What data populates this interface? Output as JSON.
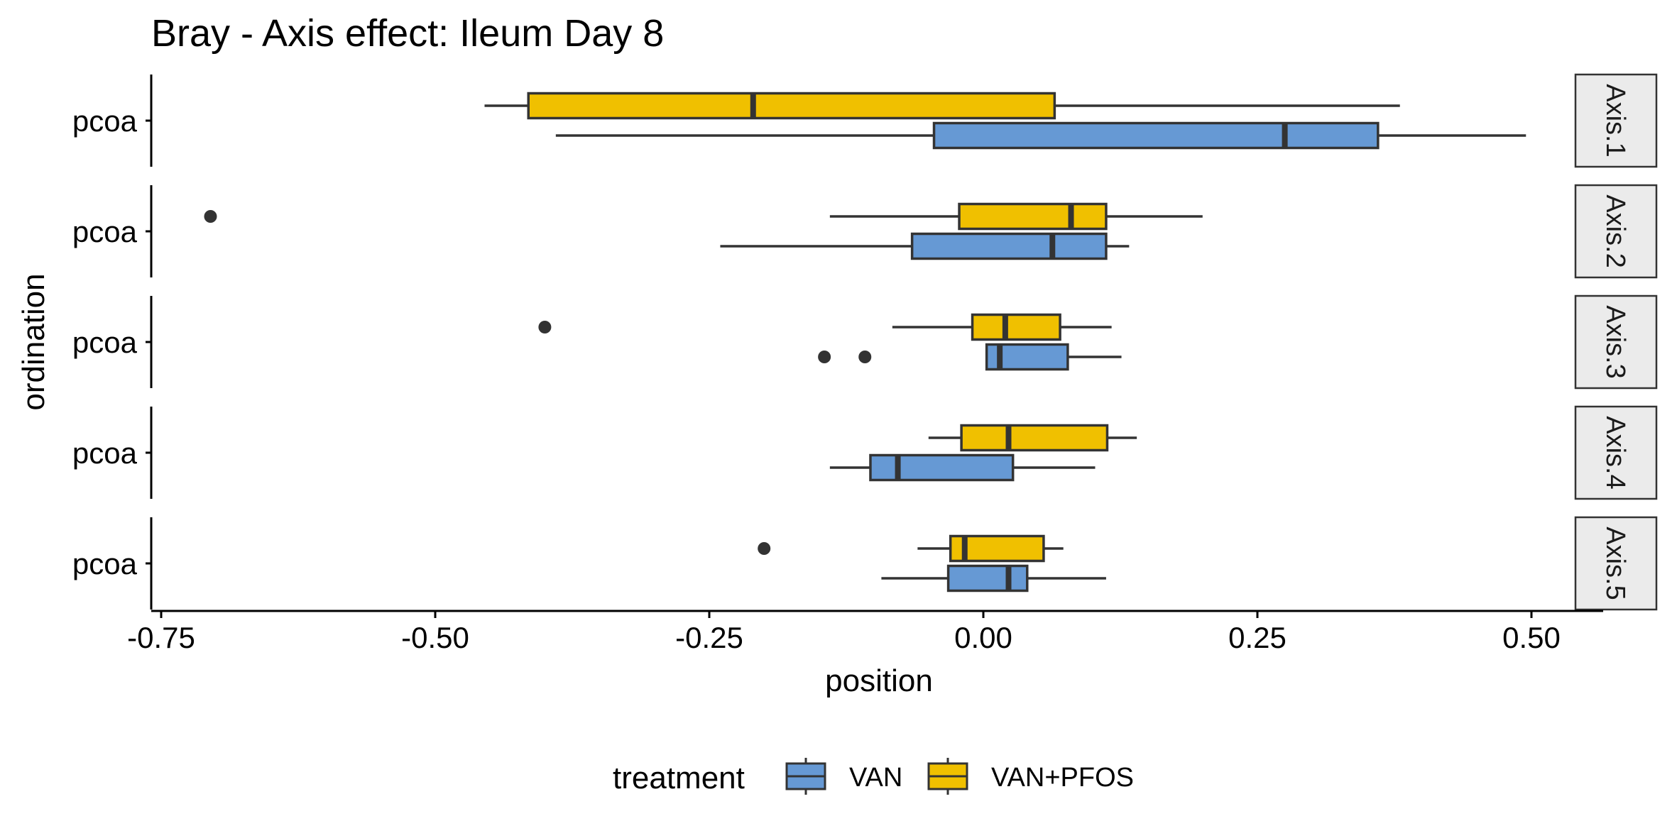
{
  "chart_data": {
    "type": "boxplot",
    "title": "Bray - Axis effect: Ileum Day 8",
    "xlabel": "position",
    "ylabel": "ordination",
    "xlim": [
      -0.76,
      0.56
    ],
    "x_ticks": [
      -0.75,
      -0.5,
      -0.25,
      0.0,
      0.25,
      0.5
    ],
    "x_tick_labels": [
      "-0.75",
      "-0.50",
      "-0.25",
      "0.00",
      "0.25",
      "0.50"
    ],
    "legend": {
      "title": "treatment",
      "position": "bottom"
    },
    "series": [
      {
        "name": "VAN",
        "color": "#6699d4"
      },
      {
        "name": "VAN+PFOS",
        "color": "#f0c000"
      }
    ],
    "panels": [
      {
        "strip": "Axis.1",
        "category": "pcoa",
        "boxes": [
          {
            "series": "VAN+PFOS",
            "whisker_low": -0.455,
            "q1": -0.415,
            "median": -0.21,
            "q3": 0.065,
            "whisker_high": 0.38,
            "outliers": []
          },
          {
            "series": "VAN",
            "whisker_low": -0.39,
            "q1": -0.045,
            "median": 0.275,
            "q3": 0.36,
            "whisker_high": 0.495,
            "outliers": []
          }
        ]
      },
      {
        "strip": "Axis.2",
        "category": "pcoa",
        "boxes": [
          {
            "series": "VAN+PFOS",
            "whisker_low": -0.14,
            "q1": -0.022,
            "median": 0.08,
            "q3": 0.112,
            "whisker_high": 0.2,
            "outliers": [
              -0.705
            ]
          },
          {
            "series": "VAN",
            "whisker_low": -0.24,
            "q1": -0.065,
            "median": 0.063,
            "q3": 0.112,
            "whisker_high": 0.133,
            "outliers": []
          }
        ]
      },
      {
        "strip": "Axis.3",
        "category": "pcoa",
        "boxes": [
          {
            "series": "VAN+PFOS",
            "whisker_low": -0.083,
            "q1": -0.01,
            "median": 0.02,
            "q3": 0.07,
            "whisker_high": 0.117,
            "outliers": [
              -0.4
            ]
          },
          {
            "series": "VAN",
            "whisker_low": 0.003,
            "q1": 0.003,
            "median": 0.015,
            "q3": 0.077,
            "whisker_high": 0.126,
            "outliers": [
              -0.145,
              -0.108
            ]
          }
        ]
      },
      {
        "strip": "Axis.4",
        "category": "pcoa",
        "boxes": [
          {
            "series": "VAN+PFOS",
            "whisker_low": -0.05,
            "q1": -0.02,
            "median": 0.023,
            "q3": 0.113,
            "whisker_high": 0.14,
            "outliers": []
          },
          {
            "series": "VAN",
            "whisker_low": -0.14,
            "q1": -0.103,
            "median": -0.078,
            "q3": 0.027,
            "whisker_high": 0.102,
            "outliers": []
          }
        ]
      },
      {
        "strip": "Axis.5",
        "category": "pcoa",
        "boxes": [
          {
            "series": "VAN+PFOS",
            "whisker_low": -0.06,
            "q1": -0.03,
            "median": -0.017,
            "q3": 0.055,
            "whisker_high": 0.073,
            "outliers": [
              -0.2
            ]
          },
          {
            "series": "VAN",
            "whisker_low": -0.093,
            "q1": -0.032,
            "median": 0.023,
            "q3": 0.04,
            "whisker_high": 0.112,
            "outliers": []
          }
        ]
      }
    ]
  }
}
